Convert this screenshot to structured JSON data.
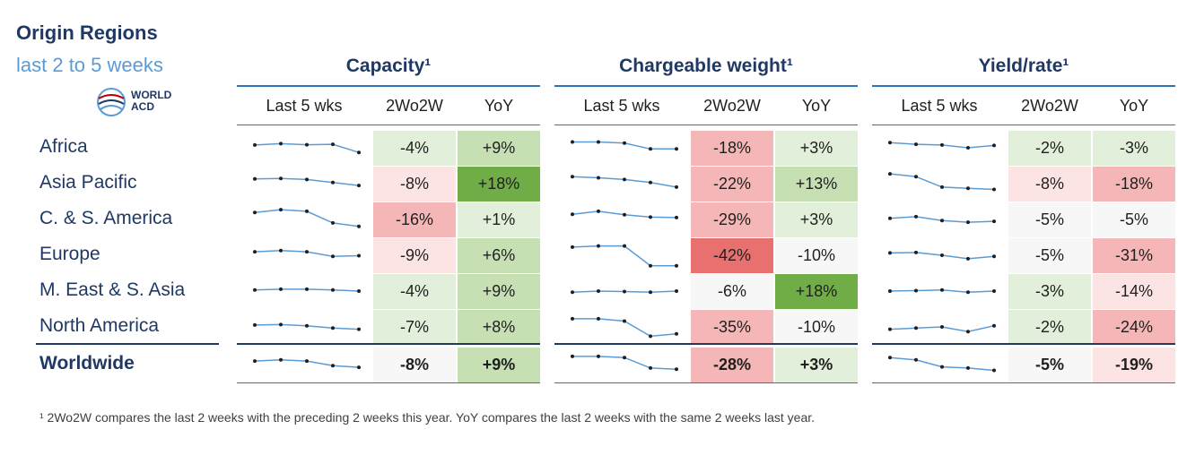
{
  "header": {
    "title": "Origin Regions",
    "subtitle": "last 2 to 5 weeks",
    "logo_text": [
      "WORLD",
      "ACD"
    ]
  },
  "groups": [
    {
      "title": "Capacity¹"
    },
    {
      "title": "Chargeable weight¹"
    },
    {
      "title": "Yield/rate¹"
    }
  ],
  "column_headers": [
    "Last 5 wks",
    "2Wo2W",
    "YoY"
  ],
  "regions": [
    "Africa",
    "Asia Pacific",
    "C. & S. America",
    "Europe",
    "M. East & S. Asia",
    "North America",
    "Worldwide"
  ],
  "footnote": "¹ 2Wo2W compares the last 2 weeks with the preceding 2 weeks this year. YoY compares the last 2 weeks with the same 2 weeks last year.",
  "colors": {
    "green_light": "#e2efda",
    "green_mid": "#c6e0b4",
    "green_strong": "#70ad47",
    "red_light": "#fce4e4",
    "red_mid": "#f4b6b6",
    "red_strong": "#e8706e",
    "neutral": "#f7f7f7",
    "line": "#5b9bd5"
  },
  "chart_data": [
    {
      "type": "table",
      "title": "Capacity¹",
      "columns": [
        "Last 5 wks",
        "2Wo2W",
        "YoY"
      ],
      "rows": [
        {
          "region": "Africa",
          "trend": [
            0.62,
            0.68,
            0.63,
            0.65,
            0.3
          ],
          "wow": "-4%",
          "yoy": "+9%",
          "wow_color": "green_light",
          "yoy_color": "green_mid"
        },
        {
          "region": "Asia Pacific",
          "trend": [
            0.7,
            0.72,
            0.68,
            0.55,
            0.42
          ],
          "wow": "-8%",
          "yoy": "+18%",
          "wow_color": "red_light",
          "yoy_color": "green_strong"
        },
        {
          "region": "C. & S. America",
          "trend": [
            0.8,
            0.92,
            0.85,
            0.35,
            0.2
          ],
          "wow": "-16%",
          "yoy": "+1%",
          "wow_color": "red_mid",
          "yoy_color": "green_light"
        },
        {
          "region": "Europe",
          "trend": [
            0.65,
            0.7,
            0.65,
            0.45,
            0.48
          ],
          "wow": "-9%",
          "yoy": "+6%",
          "wow_color": "red_light",
          "yoy_color": "green_mid"
        },
        {
          "region": "M. East & S. Asia",
          "trend": [
            0.55,
            0.58,
            0.58,
            0.55,
            0.5
          ],
          "wow": "-4%",
          "yoy": "+9%",
          "wow_color": "green_light",
          "yoy_color": "green_mid"
        },
        {
          "region": "North America",
          "trend": [
            0.58,
            0.6,
            0.55,
            0.45,
            0.4
          ],
          "wow": "-7%",
          "yoy": "+8%",
          "wow_color": "green_light",
          "yoy_color": "green_mid"
        },
        {
          "region": "Worldwide",
          "trend": [
            0.65,
            0.7,
            0.65,
            0.45,
            0.38
          ],
          "wow": "-8%",
          "yoy": "+9%",
          "wow_color": "neutral",
          "yoy_color": "green_mid"
        }
      ]
    },
    {
      "type": "table",
      "title": "Chargeable weight¹",
      "columns": [
        "Last 5 wks",
        "2Wo2W",
        "YoY"
      ],
      "rows": [
        {
          "region": "Africa",
          "trend": [
            0.75,
            0.75,
            0.7,
            0.45,
            0.45
          ],
          "wow": "-18%",
          "yoy": "+3%",
          "wow_color": "red_mid",
          "yoy_color": "green_light"
        },
        {
          "region": "Asia Pacific",
          "trend": [
            0.8,
            0.75,
            0.68,
            0.55,
            0.35
          ],
          "wow": "-22%",
          "yoy": "+13%",
          "wow_color": "red_mid",
          "yoy_color": "green_mid"
        },
        {
          "region": "C. & S. America",
          "trend": [
            0.72,
            0.85,
            0.7,
            0.6,
            0.58
          ],
          "wow": "-29%",
          "yoy": "+3%",
          "wow_color": "red_mid",
          "yoy_color": "green_light"
        },
        {
          "region": "Europe",
          "trend": [
            0.85,
            0.9,
            0.9,
            0.05,
            0.05
          ],
          "wow": "-42%",
          "yoy": "-10%",
          "wow_color": "red_strong",
          "yoy_color": "neutral"
        },
        {
          "region": "M. East & S. Asia",
          "trend": [
            0.45,
            0.5,
            0.48,
            0.45,
            0.5
          ],
          "wow": "-6%",
          "yoy": "+18%",
          "wow_color": "neutral",
          "yoy_color": "green_strong"
        },
        {
          "region": "North America",
          "trend": [
            0.85,
            0.85,
            0.75,
            0.1,
            0.2
          ],
          "wow": "-35%",
          "yoy": "-10%",
          "wow_color": "red_mid",
          "yoy_color": "neutral"
        },
        {
          "region": "Worldwide",
          "trend": [
            0.85,
            0.85,
            0.8,
            0.35,
            0.3
          ],
          "wow": "-28%",
          "yoy": "+3%",
          "wow_color": "red_mid",
          "yoy_color": "green_light"
        }
      ]
    },
    {
      "type": "table",
      "title": "Yield/rate¹",
      "columns": [
        "Last 5 wks",
        "2Wo2W",
        "YoY"
      ],
      "rows": [
        {
          "region": "Africa",
          "trend": [
            0.72,
            0.65,
            0.62,
            0.5,
            0.6
          ],
          "wow": "-2%",
          "yoy": "-3%",
          "wow_color": "green_light",
          "yoy_color": "green_light"
        },
        {
          "region": "Asia Pacific",
          "trend": [
            0.92,
            0.8,
            0.35,
            0.3,
            0.25
          ],
          "wow": "-8%",
          "yoy": "-18%",
          "wow_color": "red_light",
          "yoy_color": "red_mid"
        },
        {
          "region": "C. & S. America",
          "trend": [
            0.55,
            0.62,
            0.45,
            0.38,
            0.42
          ],
          "wow": "-5%",
          "yoy": "-5%",
          "wow_color": "neutral",
          "yoy_color": "neutral"
        },
        {
          "region": "Europe",
          "trend": [
            0.6,
            0.62,
            0.5,
            0.35,
            0.45
          ],
          "wow": "-5%",
          "yoy": "-31%",
          "wow_color": "neutral",
          "yoy_color": "red_mid"
        },
        {
          "region": "M. East & S. Asia",
          "trend": [
            0.5,
            0.52,
            0.55,
            0.45,
            0.5
          ],
          "wow": "-3%",
          "yoy": "-14%",
          "wow_color": "green_light",
          "yoy_color": "red_light"
        },
        {
          "region": "North America",
          "trend": [
            0.4,
            0.45,
            0.5,
            0.3,
            0.55
          ],
          "wow": "-2%",
          "yoy": "-24%",
          "wow_color": "green_light",
          "yoy_color": "red_mid"
        },
        {
          "region": "Worldwide",
          "trend": [
            0.8,
            0.7,
            0.4,
            0.35,
            0.25
          ],
          "wow": "-5%",
          "yoy": "-19%",
          "wow_color": "neutral",
          "yoy_color": "red_light"
        }
      ]
    }
  ]
}
